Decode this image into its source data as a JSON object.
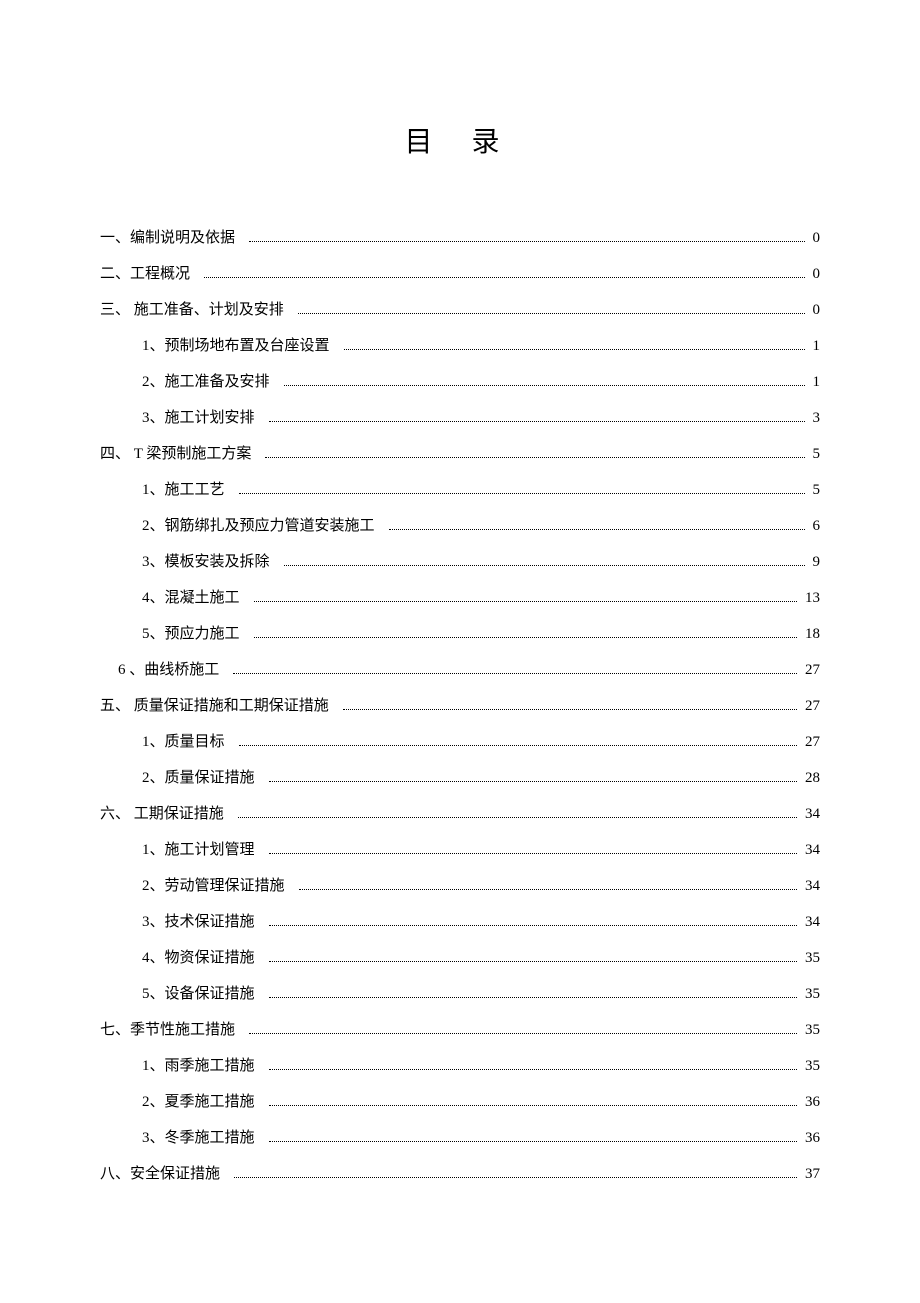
{
  "title": "目 录",
  "entries": [
    {
      "level": 1,
      "label": "一、编制说明及依据",
      "page": "0"
    },
    {
      "level": 1,
      "label": "二、工程概况",
      "page": "0"
    },
    {
      "level": 1,
      "label": "三、 施工准备、计划及安排",
      "page": "0"
    },
    {
      "level": 2,
      "label": "1、预制场地布置及台座设置",
      "page": "1"
    },
    {
      "level": 2,
      "label": "2、施工准备及安排",
      "page": "1"
    },
    {
      "level": 2,
      "label": "3、施工计划安排",
      "page": "3"
    },
    {
      "level": 1,
      "label": "四、 T 梁预制施工方案",
      "page": "5"
    },
    {
      "level": 2,
      "label": "1、施工工艺",
      "page": "5"
    },
    {
      "level": 2,
      "label": "2、钢筋绑扎及预应力管道安装施工",
      "page": "6"
    },
    {
      "level": 2,
      "label": "3、模板安装及拆除",
      "page": "9"
    },
    {
      "level": 2,
      "label": "4、混凝土施工",
      "page": "13"
    },
    {
      "level": 2,
      "label": "5、预应力施工",
      "page": "18"
    },
    {
      "level": 2,
      "label": "6 、曲线桥施工",
      "page": "27",
      "special": true
    },
    {
      "level": 1,
      "label": "五、 质量保证措施和工期保证措施",
      "page": "27"
    },
    {
      "level": 2,
      "label": "1、质量目标",
      "page": "27"
    },
    {
      "level": 2,
      "label": "2、质量保证措施",
      "page": "28"
    },
    {
      "level": 1,
      "label": "六、 工期保证措施",
      "page": "34"
    },
    {
      "level": 2,
      "label": "1、施工计划管理",
      "page": "34"
    },
    {
      "level": 2,
      "label": "2、劳动管理保证措施",
      "page": "34"
    },
    {
      "level": 2,
      "label": "3、技术保证措施",
      "page": "34"
    },
    {
      "level": 2,
      "label": "4、物资保证措施",
      "page": "35"
    },
    {
      "level": 2,
      "label": "5、设备保证措施",
      "page": "35"
    },
    {
      "level": 1,
      "label": "七、季节性施工措施",
      "page": "35"
    },
    {
      "level": 2,
      "label": "1、雨季施工措施",
      "page": "35"
    },
    {
      "level": 2,
      "label": "2、夏季施工措施",
      "page": "36"
    },
    {
      "level": 2,
      "label": "3、冬季施工措施",
      "page": "36"
    },
    {
      "level": 1,
      "label": "八、安全保证措施",
      "page": "37"
    }
  ]
}
